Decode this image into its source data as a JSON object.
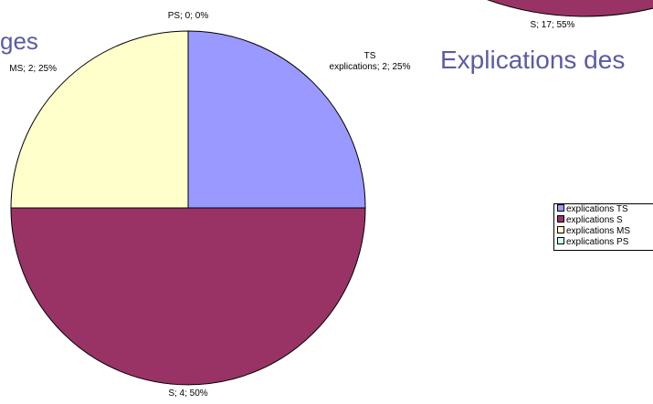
{
  "chart_data": [
    {
      "type": "pie",
      "title": "ges",
      "categories": [
        "explications TS",
        "explications S",
        "explications MS",
        "explications PS"
      ],
      "values": [
        2,
        4,
        2,
        0
      ],
      "value_labels": [
        "TS\nexplications; 2; 25%",
        "S; 4; 50%",
        "MS; 2; 25%",
        "PS; 0; 0%"
      ],
      "colors": [
        "#9999ff",
        "#993366",
        "#ffffcc",
        "#ccffff"
      ],
      "legend": "right"
    },
    {
      "type": "pie-fragment",
      "title": "Explications des",
      "values": [
        17
      ],
      "value_labels": [
        "S; 17; 55%"
      ],
      "colors": [
        "#993366"
      ]
    }
  ]
}
